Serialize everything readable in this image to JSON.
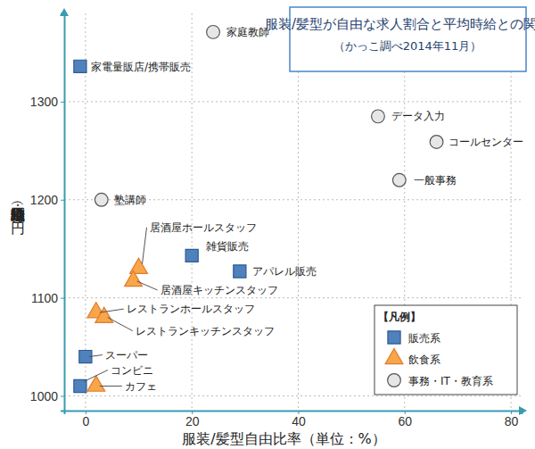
{
  "chart_data": {
    "type": "scatter",
    "title": "服装/髪型が自由な求人割合と平均時給との関係",
    "subtitle": "（かっこ調べ2014年11月）",
    "x_label": "服装/髪型自由比率（単位：%）",
    "y_label": "職種別平均時給（単位：円）",
    "xlim": [
      -4,
      82
    ],
    "ylim": [
      985,
      1390
    ],
    "xticks": [
      0,
      20,
      40,
      60,
      80
    ],
    "yticks": [
      1000,
      1100,
      1200,
      1300
    ],
    "grid": true,
    "legend": "bottom-right",
    "legend_title": "【凡例】",
    "series": [
      {
        "name": "販売系",
        "color": "#4f81bd",
        "marker": "square",
        "labels": [
          "家電量販店/携帯販売",
          "雑貨販売",
          "アパレル販売",
          "スーパー",
          "コンビニ"
        ],
        "x": [
          -1,
          20,
          29,
          0,
          -1
        ],
        "values": [
          1336,
          1143,
          1127,
          1040,
          1010
        ]
      },
      {
        "name": "飲食系",
        "color": "#f9a64a",
        "marker": "triangle",
        "labels": [
          "居酒屋ホールスタッフ",
          "居酒屋キッチンスタッフ",
          "レストランホールスタッフ",
          "レストランキッチンスタッフ",
          "カフェ"
        ],
        "x": [
          10,
          9,
          2,
          3.5,
          2
        ],
        "values": [
          1130,
          1117,
          1085,
          1080,
          1010
        ]
      },
      {
        "name": "事務・IT・教育系",
        "color": "#e6e6e6",
        "marker": "circle",
        "labels": [
          "家庭教師",
          "データ入力",
          "コールセンター",
          "一般事務",
          "塾講師"
        ],
        "x": [
          24,
          55,
          66,
          59,
          3
        ],
        "values": [
          1371,
          1285,
          1259,
          1220,
          1200
        ]
      }
    ]
  }
}
